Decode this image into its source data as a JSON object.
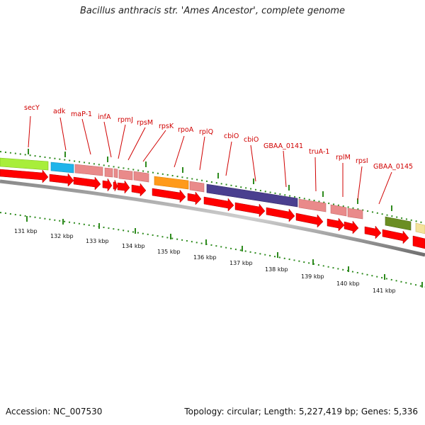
{
  "title": "Bacillus anthracis str. 'Ames Ancestor', complete genome",
  "footer": {
    "accession": "Accession: NC_007530",
    "summary": "Topology: circular; Length: 5,227,419 bp; Genes: 5,336"
  },
  "colors": {
    "gene_label": "#d00000",
    "cds_arrow": "#ff0000",
    "tick_green": "#2e8b1e",
    "backbone_dark": "#555555",
    "backbone_light": "#bbbbbb"
  },
  "gene_labels": [
    "secY",
    "adk",
    "maP-1",
    "infA",
    "rpmJ",
    "rpsM",
    "rpsK",
    "rpoA",
    "rplQ",
    "cbiO",
    "cbiO",
    "GBAA_0141",
    "truA-1",
    "rplM",
    "rpsI",
    "GBAA_0145"
  ],
  "kbp_labels": [
    "131 kbp",
    "132 kbp",
    "133 kbp",
    "134 kbp",
    "135 kbp",
    "136 kbp",
    "137 kbp",
    "138 kbp",
    "139 kbp",
    "140 kbp",
    "141 kbp"
  ],
  "feature_colors": {
    "lime": "#a8ee3a",
    "cyan": "#1fb4ea",
    "pink": "#e98a8a",
    "orange": "#ff9a1a",
    "purple": "#4a3f8f",
    "olive": "#6b8e23",
    "cream": "#f4e29a"
  }
}
